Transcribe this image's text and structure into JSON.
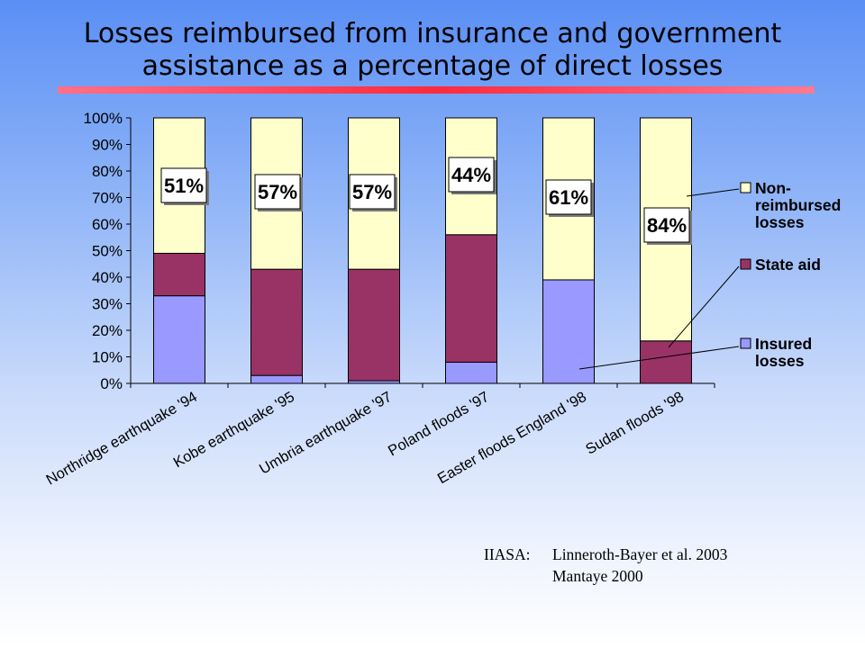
{
  "title_lines": [
    "Losses reimbursed from insurance and government",
    "assistance as a percentage of direct losses"
  ],
  "citation": {
    "label": "IIASA:",
    "line1": "Linneroth-Bayer et al. 2003",
    "line2": "Mantaye 2000"
  },
  "colors": {
    "insured": "#9999ff",
    "state_aid": "#993366",
    "non_reimbursed": "#ffffcc",
    "divider": "#ff2a3c"
  },
  "chart_data": {
    "type": "bar",
    "stacked": true,
    "categories": [
      "Northridge earthquake '94",
      "Kobe earthquake '95",
      "Umbria earthquake '97",
      "Poland floods '97",
      "Easter floods England '98",
      "Sudan floods '98"
    ],
    "series": [
      {
        "name": "Insured losses",
        "color": "#9999ff",
        "values": [
          33,
          3,
          1,
          8,
          39,
          0
        ]
      },
      {
        "name": "State aid",
        "color": "#993366",
        "values": [
          16,
          40,
          42,
          48,
          0,
          16
        ]
      },
      {
        "name": "Non-reimbursed losses",
        "color": "#ffffcc",
        "values": [
          51,
          57,
          57,
          44,
          61,
          84
        ]
      }
    ],
    "data_labels": [
      "51%",
      "57%",
      "57%",
      "44%",
      "61%",
      "84%"
    ],
    "ylim": [
      0,
      100
    ],
    "y_ticks": [
      "0%",
      "10%",
      "20%",
      "30%",
      "40%",
      "50%",
      "60%",
      "70%",
      "80%",
      "90%",
      "100%"
    ],
    "legend": {
      "position": "right",
      "entries": [
        {
          "lines": [
            "Non-",
            "reimbursed",
            "losses"
          ],
          "color": "#ffffcc"
        },
        {
          "lines": [
            "State aid"
          ],
          "color": "#993366"
        },
        {
          "lines": [
            "Insured",
            "losses"
          ],
          "color": "#9999ff"
        }
      ]
    },
    "grid": false
  }
}
